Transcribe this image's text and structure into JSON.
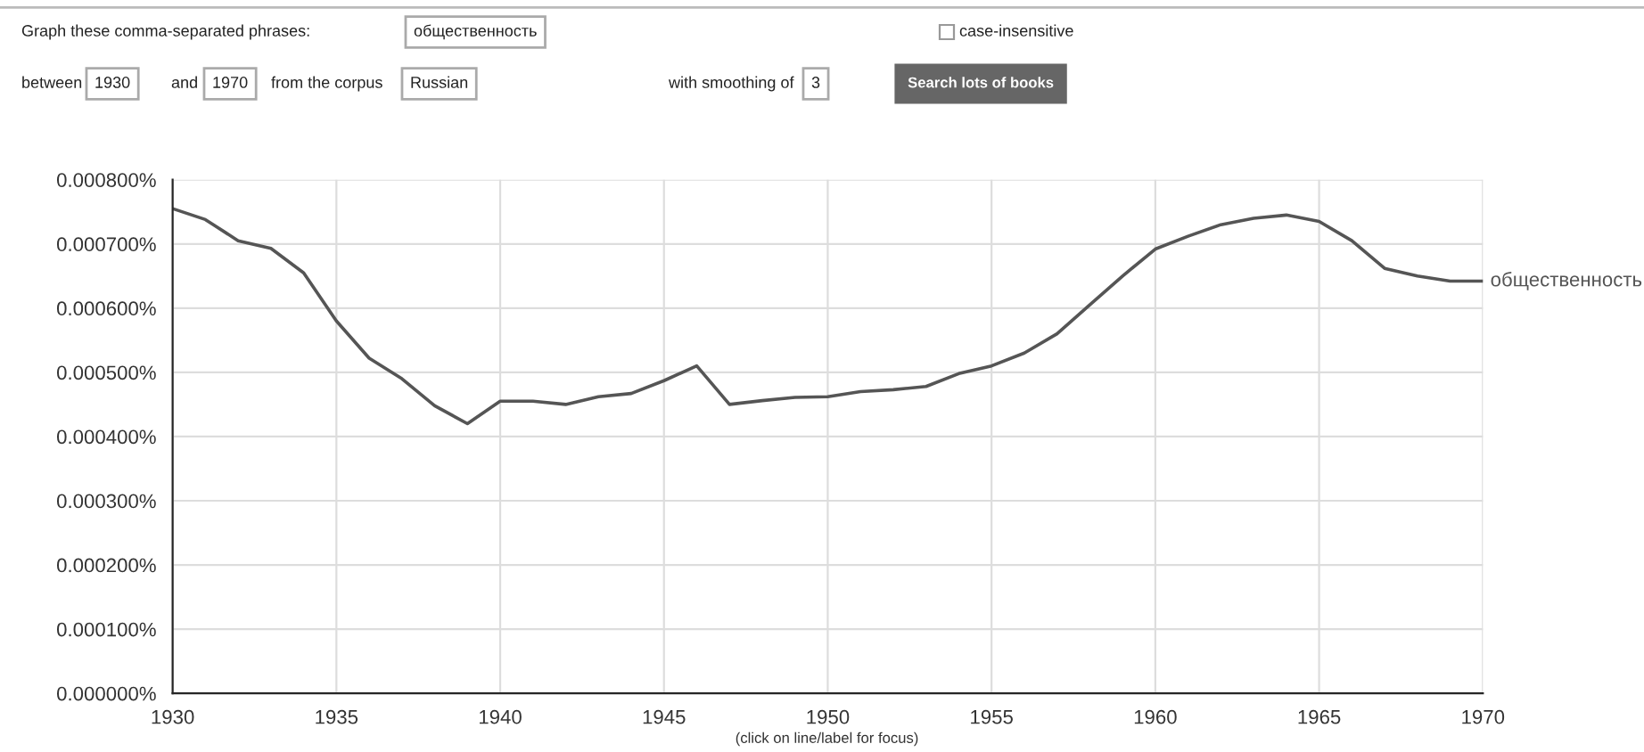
{
  "chart_data": {
    "type": "line",
    "x": [
      1930,
      1931,
      1932,
      1933,
      1934,
      1935,
      1936,
      1937,
      1938,
      1939,
      1940,
      1941,
      1942,
      1943,
      1944,
      1945,
      1946,
      1947,
      1948,
      1949,
      1950,
      1951,
      1952,
      1953,
      1954,
      1955,
      1956,
      1957,
      1958,
      1959,
      1960,
      1961,
      1962,
      1963,
      1964,
      1965,
      1966,
      1967,
      1968,
      1969,
      1970
    ],
    "series": [
      {
        "name": "общественность",
        "color": "#555555",
        "values": [
          0.000755,
          0.000738,
          0.000705,
          0.000693,
          0.000655,
          0.00058,
          0.000522,
          0.00049,
          0.000448,
          0.00042,
          0.000455,
          0.000455,
          0.00045,
          0.000462,
          0.000467,
          0.000487,
          0.00051,
          0.00045,
          0.000456,
          0.000461,
          0.000462,
          0.00047,
          0.000473,
          0.000478,
          0.000498,
          0.00051,
          0.00053,
          0.00056,
          0.000605,
          0.00065,
          0.000692,
          0.000712,
          0.00073,
          0.00074,
          0.000745,
          0.000735,
          0.000705,
          0.000662,
          0.00065,
          0.000642,
          0.000642
        ]
      }
    ],
    "xlim": [
      1930,
      1970
    ],
    "xticks": [
      1930,
      1935,
      1940,
      1945,
      1950,
      1955,
      1960,
      1965,
      1970
    ],
    "ylim": [
      0,
      0.0008
    ],
    "yticks": [
      {
        "value": 0,
        "label": "0.000000%"
      },
      {
        "value": 0.0001,
        "label": "0.000100%"
      },
      {
        "value": 0.0002,
        "label": "0.000200%"
      },
      {
        "value": 0.0003,
        "label": "0.000300%"
      },
      {
        "value": 0.0004,
        "label": "0.000400%"
      },
      {
        "value": 0.0005,
        "label": "0.000500%"
      },
      {
        "value": 0.0006,
        "label": "0.000600%"
      },
      {
        "value": 0.0007,
        "label": "0.000700%"
      },
      {
        "value": 0.0008,
        "label": "0.000800%"
      }
    ],
    "grid": true,
    "legend": false,
    "marker": "none",
    "line_style": "solid",
    "annotations": [
      "Graph these comma-separated phrases:",
      "общественность",
      "case-insensitive",
      "between",
      "1930",
      "and",
      "1970",
      "from the corpus",
      "Russian",
      "with smoothing of",
      "3",
      "Search lots of books",
      "(click on line/label for focus)"
    ]
  }
}
